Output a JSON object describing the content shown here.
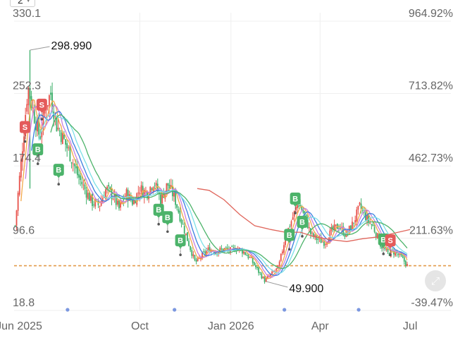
{
  "toolbar": {
    "period_select_value": "2",
    "fullscreen_icon": "expand-icon"
  },
  "colors": {
    "up": "#e8514a",
    "down": "#3eb06b",
    "ma_a": "#f3a84a",
    "ma_b": "#c87fe0",
    "ma_c": "#3a7fe0",
    "ma_d": "#7be0e6",
    "ma_e": "#4cb36a",
    "ma_f": "#e0665c",
    "buy": "#4cb36a",
    "sell": "#e45b5b",
    "baseline": "#e39a4a"
  },
  "chart_data": {
    "type": "candlestick",
    "y_left_ticks": [
      "330.1",
      "252.3",
      "174.4",
      "96.6",
      "18.8"
    ],
    "y_right_ticks": [
      "964.92%",
      "713.82%",
      "462.73%",
      "211.63%",
      "-39.47%"
    ],
    "ylim": [
      18.8,
      330.1
    ],
    "x_ticks": [
      "Jun 2025",
      "Oct",
      "Jan 2026",
      "Apr",
      "Jul"
    ],
    "x_tick_dates": [
      "2025-06-01",
      "2025-10-01",
      "2026-01-01",
      "2026-04-01",
      "2026-07-01"
    ],
    "xlim": [
      "2025-05-27",
      "2026-07-08"
    ],
    "baseline_value": 67,
    "max_annotation": {
      "date": "2025-06-12",
      "value": 298.99,
      "label": "298.990"
    },
    "min_annotation": {
      "date": "2026-02-06",
      "value": 49.9,
      "label": "49.900"
    },
    "price_path": [
      [
        "2025-05-28",
        110
      ],
      [
        "2025-06-04",
        190
      ],
      [
        "2025-06-10",
        260
      ],
      [
        "2025-06-16",
        230
      ],
      [
        "2025-06-22",
        205
      ],
      [
        "2025-06-28",
        240
      ],
      [
        "2025-07-03",
        252
      ],
      [
        "2025-07-09",
        218
      ],
      [
        "2025-07-15",
        205
      ],
      [
        "2025-07-22",
        188
      ],
      [
        "2025-07-30",
        165
      ],
      [
        "2025-08-07",
        148
      ],
      [
        "2025-08-14",
        135
      ],
      [
        "2025-08-21",
        132
      ],
      [
        "2025-08-28",
        150
      ],
      [
        "2025-09-04",
        142
      ],
      [
        "2025-09-10",
        128
      ],
      [
        "2025-09-17",
        145
      ],
      [
        "2025-09-24",
        135
      ],
      [
        "2025-10-01",
        150
      ],
      [
        "2025-10-08",
        145
      ],
      [
        "2025-10-15",
        158
      ],
      [
        "2025-10-22",
        138
      ],
      [
        "2025-10-29",
        155
      ],
      [
        "2025-11-05",
        140
      ],
      [
        "2025-11-12",
        115
      ],
      [
        "2025-11-19",
        92
      ],
      [
        "2025-11-26",
        70
      ],
      [
        "2025-12-03",
        78
      ],
      [
        "2025-12-10",
        85
      ],
      [
        "2025-12-17",
        82
      ],
      [
        "2025-12-24",
        85
      ],
      [
        "2025-12-31",
        83
      ],
      [
        "2026-01-07",
        86
      ],
      [
        "2026-01-14",
        82
      ],
      [
        "2026-01-21",
        74
      ],
      [
        "2026-01-28",
        62
      ],
      [
        "2026-02-04",
        51
      ],
      [
        "2026-02-11",
        58
      ],
      [
        "2026-02-18",
        65
      ],
      [
        "2026-02-25",
        98
      ],
      [
        "2026-03-04",
        118
      ],
      [
        "2026-03-10",
        135
      ],
      [
        "2026-03-16",
        122
      ],
      [
        "2026-03-23",
        100
      ],
      [
        "2026-03-30",
        95
      ],
      [
        "2026-04-06",
        92
      ],
      [
        "2026-04-13",
        105
      ],
      [
        "2026-04-20",
        110
      ],
      [
        "2026-04-27",
        100
      ],
      [
        "2026-05-04",
        112
      ],
      [
        "2026-05-11",
        130
      ],
      [
        "2026-05-18",
        118
      ],
      [
        "2026-05-25",
        108
      ],
      [
        "2026-06-01",
        90
      ],
      [
        "2026-06-08",
        80
      ],
      [
        "2026-06-15",
        82
      ],
      [
        "2026-06-22",
        76
      ],
      [
        "2026-06-29",
        66
      ]
    ],
    "slow_ma": [
      [
        "2025-11-28",
        150
      ],
      [
        "2025-12-10",
        148
      ],
      [
        "2025-12-25",
        138
      ],
      [
        "2026-01-10",
        122
      ],
      [
        "2026-01-25",
        110
      ],
      [
        "2026-02-10",
        106
      ],
      [
        "2026-02-25",
        103
      ],
      [
        "2026-03-12",
        103
      ],
      [
        "2026-03-27",
        98
      ],
      [
        "2026-04-12",
        95
      ],
      [
        "2026-04-28",
        93
      ],
      [
        "2026-05-14",
        96
      ],
      [
        "2026-05-30",
        98
      ],
      [
        "2026-06-15",
        102
      ],
      [
        "2026-07-01",
        106
      ]
    ],
    "signals": [
      {
        "type": "S",
        "date": "2025-06-07",
        "value": 209,
        "label": "S"
      },
      {
        "type": "S",
        "date": "2025-06-24",
        "value": 233,
        "label": "S"
      },
      {
        "type": "B",
        "date": "2025-06-20",
        "value": 185,
        "label": "B"
      },
      {
        "type": "B",
        "date": "2025-07-11",
        "value": 163,
        "label": "B"
      },
      {
        "type": "B",
        "date": "2025-10-20",
        "value": 120,
        "label": "B"
      },
      {
        "type": "B",
        "date": "2025-10-29",
        "value": 112,
        "label": "B"
      },
      {
        "type": "B",
        "date": "2025-11-11",
        "value": 87,
        "label": "B"
      },
      {
        "type": "B",
        "date": "2026-03-01",
        "value": 93,
        "label": "B"
      },
      {
        "type": "B",
        "date": "2026-03-07",
        "value": 132,
        "label": "B"
      },
      {
        "type": "B",
        "date": "2026-03-14",
        "value": 107,
        "label": "B"
      },
      {
        "type": "B",
        "date": "2026-06-04",
        "value": 88,
        "label": "B"
      },
      {
        "type": "S",
        "date": "2026-06-11",
        "value": 87,
        "label": "S"
      }
    ],
    "event_markers": [
      "2025-07-20",
      "2025-11-05",
      "2026-02-24",
      "2026-05-10"
    ]
  }
}
